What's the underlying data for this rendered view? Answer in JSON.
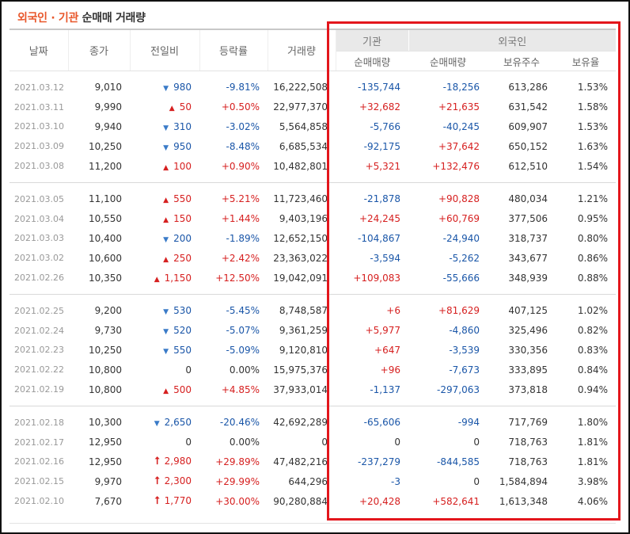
{
  "title": {
    "part1": "외국인 · 기관",
    "part2": "순매매 거래량"
  },
  "headers": {
    "date": "날짜",
    "close": "종가",
    "change": "전일비",
    "rate": "등락률",
    "volume": "거래량",
    "institution": "기관",
    "foreigner": "외국인",
    "inst_net": "순매매량",
    "foreign_net": "순매매량",
    "holdings": "보유주수",
    "ratio": "보유율"
  },
  "groups": [
    [
      {
        "date": "2021.03.12",
        "close": "9,010",
        "dir": "down",
        "change": "980",
        "rate": "-9.81%",
        "volume": "16,222,508",
        "inst": "-135,744",
        "foreign": "-18,256",
        "hold": "613,286",
        "ratio": "1.53%"
      },
      {
        "date": "2021.03.11",
        "close": "9,990",
        "dir": "up",
        "change": "50",
        "rate": "+0.50%",
        "volume": "22,977,370",
        "inst": "+32,682",
        "foreign": "+21,635",
        "hold": "631,542",
        "ratio": "1.58%"
      },
      {
        "date": "2021.03.10",
        "close": "9,940",
        "dir": "down",
        "change": "310",
        "rate": "-3.02%",
        "volume": "5,564,858",
        "inst": "-5,766",
        "foreign": "-40,245",
        "hold": "609,907",
        "ratio": "1.53%"
      },
      {
        "date": "2021.03.09",
        "close": "10,250",
        "dir": "down",
        "change": "950",
        "rate": "-8.48%",
        "volume": "6,685,534",
        "inst": "-92,175",
        "foreign": "+37,642",
        "hold": "650,152",
        "ratio": "1.63%"
      },
      {
        "date": "2021.03.08",
        "close": "11,200",
        "dir": "up",
        "change": "100",
        "rate": "+0.90%",
        "volume": "10,482,801",
        "inst": "+5,321",
        "foreign": "+132,476",
        "hold": "612,510",
        "ratio": "1.54%"
      }
    ],
    [
      {
        "date": "2021.03.05",
        "close": "11,100",
        "dir": "up",
        "change": "550",
        "rate": "+5.21%",
        "volume": "11,723,460",
        "inst": "-21,878",
        "foreign": "+90,828",
        "hold": "480,034",
        "ratio": "1.21%"
      },
      {
        "date": "2021.03.04",
        "close": "10,550",
        "dir": "up",
        "change": "150",
        "rate": "+1.44%",
        "volume": "9,403,196",
        "inst": "+24,245",
        "foreign": "+60,769",
        "hold": "377,506",
        "ratio": "0.95%"
      },
      {
        "date": "2021.03.03",
        "close": "10,400",
        "dir": "down",
        "change": "200",
        "rate": "-1.89%",
        "volume": "12,652,150",
        "inst": "-104,867",
        "foreign": "-24,940",
        "hold": "318,737",
        "ratio": "0.80%"
      },
      {
        "date": "2021.03.02",
        "close": "10,600",
        "dir": "up",
        "change": "250",
        "rate": "+2.42%",
        "volume": "23,363,022",
        "inst": "-3,594",
        "foreign": "-5,262",
        "hold": "343,677",
        "ratio": "0.86%"
      },
      {
        "date": "2021.02.26",
        "close": "10,350",
        "dir": "up",
        "change": "1,150",
        "rate": "+12.50%",
        "volume": "19,042,091",
        "inst": "+109,083",
        "foreign": "-55,666",
        "hold": "348,939",
        "ratio": "0.88%"
      }
    ],
    [
      {
        "date": "2021.02.25",
        "close": "9,200",
        "dir": "down",
        "change": "530",
        "rate": "-5.45%",
        "volume": "8,748,587",
        "inst": "+6",
        "foreign": "+81,629",
        "hold": "407,125",
        "ratio": "1.02%"
      },
      {
        "date": "2021.02.24",
        "close": "9,730",
        "dir": "down",
        "change": "520",
        "rate": "-5.07%",
        "volume": "9,361,259",
        "inst": "+5,977",
        "foreign": "-4,860",
        "hold": "325,496",
        "ratio": "0.82%"
      },
      {
        "date": "2021.02.23",
        "close": "10,250",
        "dir": "down",
        "change": "550",
        "rate": "-5.09%",
        "volume": "9,120,810",
        "inst": "+647",
        "foreign": "-3,539",
        "hold": "330,356",
        "ratio": "0.83%"
      },
      {
        "date": "2021.02.22",
        "close": "10,800",
        "dir": "none",
        "change": "0",
        "rate": "0.00%",
        "volume": "15,975,376",
        "inst": "+96",
        "foreign": "-7,673",
        "hold": "333,895",
        "ratio": "0.84%"
      },
      {
        "date": "2021.02.19",
        "close": "10,800",
        "dir": "up",
        "change": "500",
        "rate": "+4.85%",
        "volume": "37,933,014",
        "inst": "-1,137",
        "foreign": "-297,063",
        "hold": "373,818",
        "ratio": "0.94%"
      }
    ],
    [
      {
        "date": "2021.02.18",
        "close": "10,300",
        "dir": "down",
        "change": "2,650",
        "rate": "-20.46%",
        "volume": "42,692,289",
        "inst": "-65,606",
        "foreign": "-994",
        "hold": "717,769",
        "ratio": "1.80%"
      },
      {
        "date": "2021.02.17",
        "close": "12,950",
        "dir": "none",
        "change": "0",
        "rate": "0.00%",
        "volume": "0",
        "inst": "0",
        "foreign": "0",
        "hold": "718,763",
        "ratio": "1.81%"
      },
      {
        "date": "2021.02.16",
        "close": "12,950",
        "dir": "limit",
        "change": "2,980",
        "rate": "+29.89%",
        "volume": "47,482,216",
        "inst": "-237,279",
        "foreign": "-844,585",
        "hold": "718,763",
        "ratio": "1.81%"
      },
      {
        "date": "2021.02.15",
        "close": "9,970",
        "dir": "limit",
        "change": "2,300",
        "rate": "+29.99%",
        "volume": "644,296",
        "inst": "-3",
        "foreign": "0",
        "hold": "1,584,894",
        "ratio": "3.98%"
      },
      {
        "date": "2021.02.10",
        "close": "7,670",
        "dir": "limit",
        "change": "1,770",
        "rate": "+30.00%",
        "volume": "90,280,884",
        "inst": "+20,428",
        "foreign": "+582,641",
        "hold": "1,613,348",
        "ratio": "4.06%"
      }
    ]
  ],
  "icons": {
    "up": "triangle-up-icon",
    "down": "triangle-down-icon",
    "limit": "limit-up-arrow-icon"
  },
  "colors": {
    "up": "#d62020",
    "down": "#1a56a8",
    "title_accent": "#e8562a",
    "highlight_box": "#e3161c"
  }
}
